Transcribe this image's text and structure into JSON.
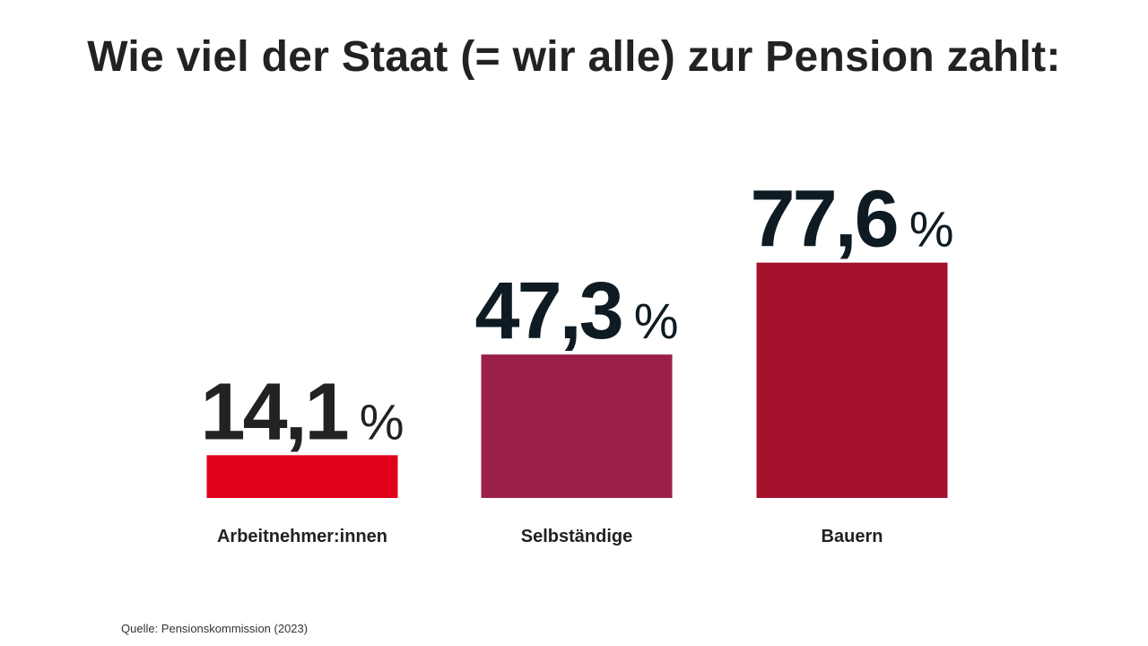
{
  "title": "Wie viel der Staat (= wir alle) zur Pension zahlt:",
  "source": "Quelle: Pensionskommission (2023)",
  "chart_data": {
    "type": "bar",
    "title": "Wie viel der Staat (= wir alle) zur Pension zahlt:",
    "categories": [
      "Arbeitnehmer:innen",
      "Selbständige",
      "Bauern"
    ],
    "values": [
      14.1,
      47.3,
      77.6
    ],
    "value_labels": [
      "14,1",
      "47,3",
      "77,6"
    ],
    "unit": "%",
    "colors": [
      "#e2001a",
      "#9b1f4a",
      "#a4112d"
    ],
    "value_label_colors": [
      "#222222",
      "#0e1b22",
      "#0e1b22"
    ],
    "grid": false,
    "legend": "none",
    "xlabel": "",
    "ylabel": ""
  }
}
